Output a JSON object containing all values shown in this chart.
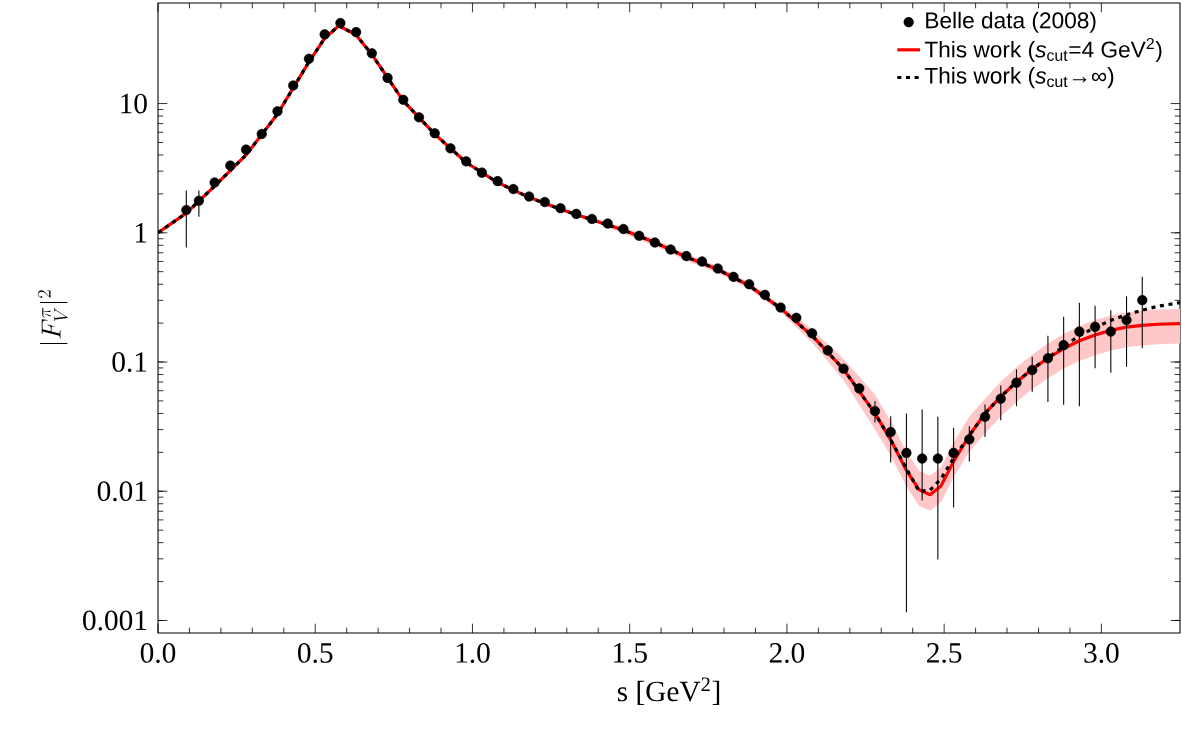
{
  "chart_data": {
    "type": "line",
    "xlabel": "s [GeV$^{2}$]",
    "ylabel": "|F_V^\\pi|^2",
    "xlim": [
      0,
      3.25
    ],
    "ylim": [
      0.0008,
      60
    ],
    "log": "y",
    "legend": "top right",
    "xticks": [
      {
        "value": 0,
        "label": "0.0"
      },
      0.5,
      {
        "value": 1,
        "label": "1.0"
      },
      1.5,
      {
        "value": 2,
        "label": "2.0"
      },
      2.5,
      {
        "value": 3,
        "label": "3.0"
      }
    ],
    "yticks": [
      0.001,
      0.01,
      0.1,
      1,
      10
    ],
    "series": [
      {
        "name": "Belle data (2008)",
        "type": "scatter",
        "color": "#000000",
        "marker": "circle",
        "x": [
          0.09,
          0.13,
          0.18,
          0.23,
          0.28,
          0.33,
          0.38,
          0.43,
          0.48,
          0.53,
          0.58,
          0.63,
          0.68,
          0.73,
          0.78,
          0.83,
          0.88,
          0.93,
          0.98,
          1.03,
          1.08,
          1.13,
          1.18,
          1.23,
          1.28,
          1.33,
          1.38,
          1.43,
          1.48,
          1.53,
          1.58,
          1.63,
          1.68,
          1.73,
          1.78,
          1.83,
          1.88,
          1.93,
          1.98,
          2.03,
          2.08,
          2.13,
          2.18,
          2.23,
          2.28,
          2.33,
          2.38,
          2.43,
          2.48,
          2.53,
          2.58,
          2.63,
          2.68,
          2.73,
          2.78,
          2.83,
          2.88,
          2.93,
          2.98,
          3.03,
          3.08,
          3.13
        ],
        "values": [
          1.5,
          1.77,
          2.45,
          3.31,
          4.4,
          5.82,
          8.71,
          13.8,
          22.2,
          34.3,
          42.0,
          35.7,
          24.5,
          15.8,
          10.7,
          7.83,
          5.89,
          4.5,
          3.57,
          2.92,
          2.51,
          2.18,
          1.91,
          1.73,
          1.55,
          1.4,
          1.28,
          1.18,
          1.07,
          0.948,
          0.841,
          0.743,
          0.66,
          0.6,
          0.529,
          0.456,
          0.4,
          0.331,
          0.264,
          0.22,
          0.167,
          0.123,
          0.0888,
          0.0625,
          0.0417,
          0.0287,
          0.0198,
          0.0179,
          0.0179,
          0.0198,
          0.0252,
          0.0377,
          0.052,
          0.0692,
          0.0867,
          0.107,
          0.135,
          0.172,
          0.187,
          0.172,
          0.211,
          0.301
        ],
        "errors": [
          [
            0.77,
            2.12
          ],
          [
            1.33,
            2.12
          ],
          null,
          null,
          null,
          null,
          null,
          null,
          null,
          null,
          null,
          null,
          null,
          null,
          null,
          null,
          null,
          null,
          null,
          null,
          null,
          null,
          null,
          null,
          null,
          null,
          null,
          null,
          null,
          null,
          null,
          null,
          null,
          null,
          null,
          null,
          null,
          null,
          null,
          null,
          null,
          null,
          null,
          null,
          [
            0.034,
            0.0497
          ],
          [
            0.0167,
            0.0381
          ],
          [
            0.00116,
            0.04
          ],
          [
            0.00847,
            0.0429
          ],
          [
            0.00296,
            0.0377
          ],
          [
            0.0075,
            0.031
          ],
          [
            0.017,
            0.0318
          ],
          [
            0.0263,
            0.047
          ],
          [
            0.0354,
            0.0659
          ],
          [
            0.0455,
            0.0877
          ],
          [
            0.0589,
            0.11
          ],
          [
            0.049,
            0.16
          ],
          [
            0.0466,
            0.224
          ],
          [
            0.0455,
            0.288
          ],
          [
            0.0893,
            0.272
          ],
          [
            0.0825,
            0.252
          ],
          [
            0.0917,
            0.321
          ],
          [
            0.128,
            0.456
          ]
        ]
      },
      {
        "name": "This work (*s*$_{cut}$=4 GeV$^{2}$)",
        "color": "#ff0000",
        "line_style": "solid",
        "x": [
          0,
          0.09,
          0.18,
          0.28,
          0.38,
          0.48,
          0.53,
          0.575,
          0.63,
          0.68,
          0.78,
          0.88,
          0.98,
          1.08,
          1.18,
          1.28,
          1.38,
          1.48,
          1.58,
          1.68,
          1.78,
          1.88,
          1.98,
          2.08,
          2.18,
          2.28,
          2.33,
          2.38,
          2.42,
          2.455,
          2.49,
          2.53,
          2.58,
          2.63,
          2.68,
          2.73,
          2.78,
          2.83,
          2.88,
          2.93,
          2.98,
          3.03,
          3.08,
          3.13,
          3.18,
          3.25
        ],
        "values": [
          1.0,
          1.42,
          2.3,
          4.0,
          8.3,
          21,
          32,
          40,
          34,
          24,
          10.5,
          5.8,
          3.5,
          2.45,
          1.88,
          1.52,
          1.26,
          1.05,
          0.84,
          0.65,
          0.52,
          0.39,
          0.26,
          0.16,
          0.088,
          0.04,
          0.025,
          0.0145,
          0.0103,
          0.0094,
          0.011,
          0.017,
          0.027,
          0.04,
          0.054,
          0.07,
          0.088,
          0.107,
          0.127,
          0.146,
          0.162,
          0.176,
          0.186,
          0.192,
          0.196,
          0.198
        ],
        "lower": [
          0.97,
          1.38,
          2.23,
          3.88,
          8.05,
          20.4,
          31.0,
          38.8,
          33.0,
          23.3,
          10.2,
          5.63,
          3.4,
          2.38,
          1.82,
          1.47,
          1.22,
          0.987,
          0.79,
          0.611,
          0.489,
          0.367,
          0.244,
          0.141,
          0.0722,
          0.03,
          0.0188,
          0.0109,
          0.00773,
          0.00705,
          0.00825,
          0.0128,
          0.0203,
          0.028,
          0.0378,
          0.049,
          0.0616,
          0.0749,
          0.0889,
          0.102,
          0.113,
          0.123,
          0.13,
          0.134,
          0.137,
          0.139
        ],
        "upper": [
          1.03,
          1.46,
          2.37,
          4.12,
          8.55,
          21.6,
          33.0,
          41.2,
          35.0,
          24.7,
          10.8,
          5.97,
          3.61,
          2.52,
          1.94,
          1.57,
          1.3,
          1.11,
          0.89,
          0.689,
          0.551,
          0.413,
          0.276,
          0.179,
          0.106,
          0.056,
          0.035,
          0.0203,
          0.0144,
          0.0132,
          0.0154,
          0.0238,
          0.0378,
          0.052,
          0.0702,
          0.091,
          0.114,
          0.139,
          0.165,
          0.19,
          0.211,
          0.229,
          0.242,
          0.25,
          0.255,
          0.257
        ]
      },
      {
        "name": "This work (*s*$_{cut}$→∞)",
        "color": "#000000",
        "line_style": "dotted",
        "x": [
          0,
          0.09,
          0.18,
          0.28,
          0.38,
          0.48,
          0.53,
          0.575,
          0.63,
          0.68,
          0.78,
          0.88,
          0.98,
          1.08,
          1.18,
          1.28,
          1.38,
          1.48,
          1.58,
          1.68,
          1.78,
          1.88,
          1.98,
          2.08,
          2.18,
          2.28,
          2.33,
          2.38,
          2.42,
          2.455,
          2.49,
          2.53,
          2.58,
          2.63,
          2.68,
          2.73,
          2.78,
          2.83,
          2.88,
          2.93,
          2.98,
          3.03,
          3.08,
          3.13,
          3.18,
          3.25
        ],
        "values": [
          1.0,
          1.42,
          2.3,
          4.0,
          8.3,
          21,
          32,
          40,
          34,
          24,
          10.5,
          5.8,
          3.5,
          2.45,
          1.88,
          1.52,
          1.26,
          1.05,
          0.84,
          0.65,
          0.52,
          0.39,
          0.26,
          0.16,
          0.088,
          0.04,
          0.025,
          0.015,
          0.01,
          0.0102,
          0.0125,
          0.018,
          0.027,
          0.04,
          0.054,
          0.07,
          0.088,
          0.108,
          0.132,
          0.16,
          0.185,
          0.21,
          0.232,
          0.252,
          0.27,
          0.288
        ]
      }
    ]
  }
}
